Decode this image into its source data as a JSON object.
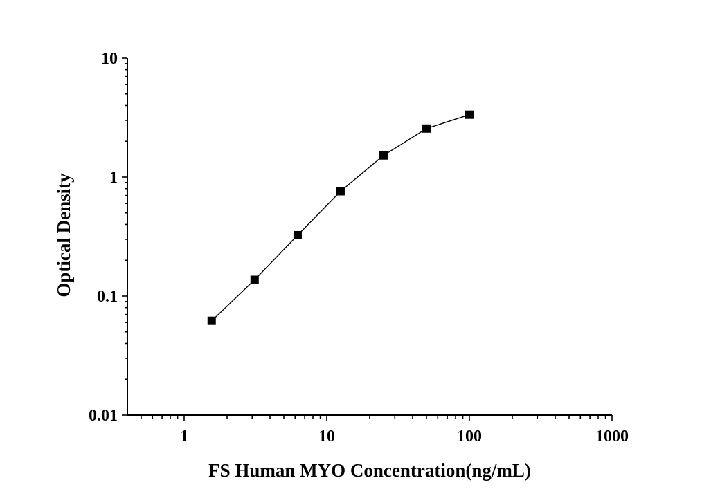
{
  "chart_data": {
    "type": "line",
    "xlabel": "FS Human MYO Concentration(ng/mL)",
    "ylabel": "Optical Density",
    "x_scale": "log",
    "y_scale": "log",
    "xlim": [
      0.4,
      1000
    ],
    "ylim": [
      0.01,
      10
    ],
    "x_ticks": [
      1,
      10,
      100,
      1000
    ],
    "x_tick_labels": [
      "1",
      "10",
      "100",
      "1000"
    ],
    "y_ticks": [
      0.01,
      0.1,
      1,
      10
    ],
    "y_tick_labels": [
      "0.01",
      "0.1",
      "1",
      "10"
    ],
    "grid": false,
    "marker": "square",
    "color": "#000000",
    "series": [
      {
        "x": [
          1.56,
          3.12,
          6.25,
          12.5,
          25,
          50,
          100
        ],
        "y": [
          0.062,
          0.137,
          0.325,
          0.76,
          1.52,
          2.56,
          3.35
        ]
      }
    ]
  }
}
